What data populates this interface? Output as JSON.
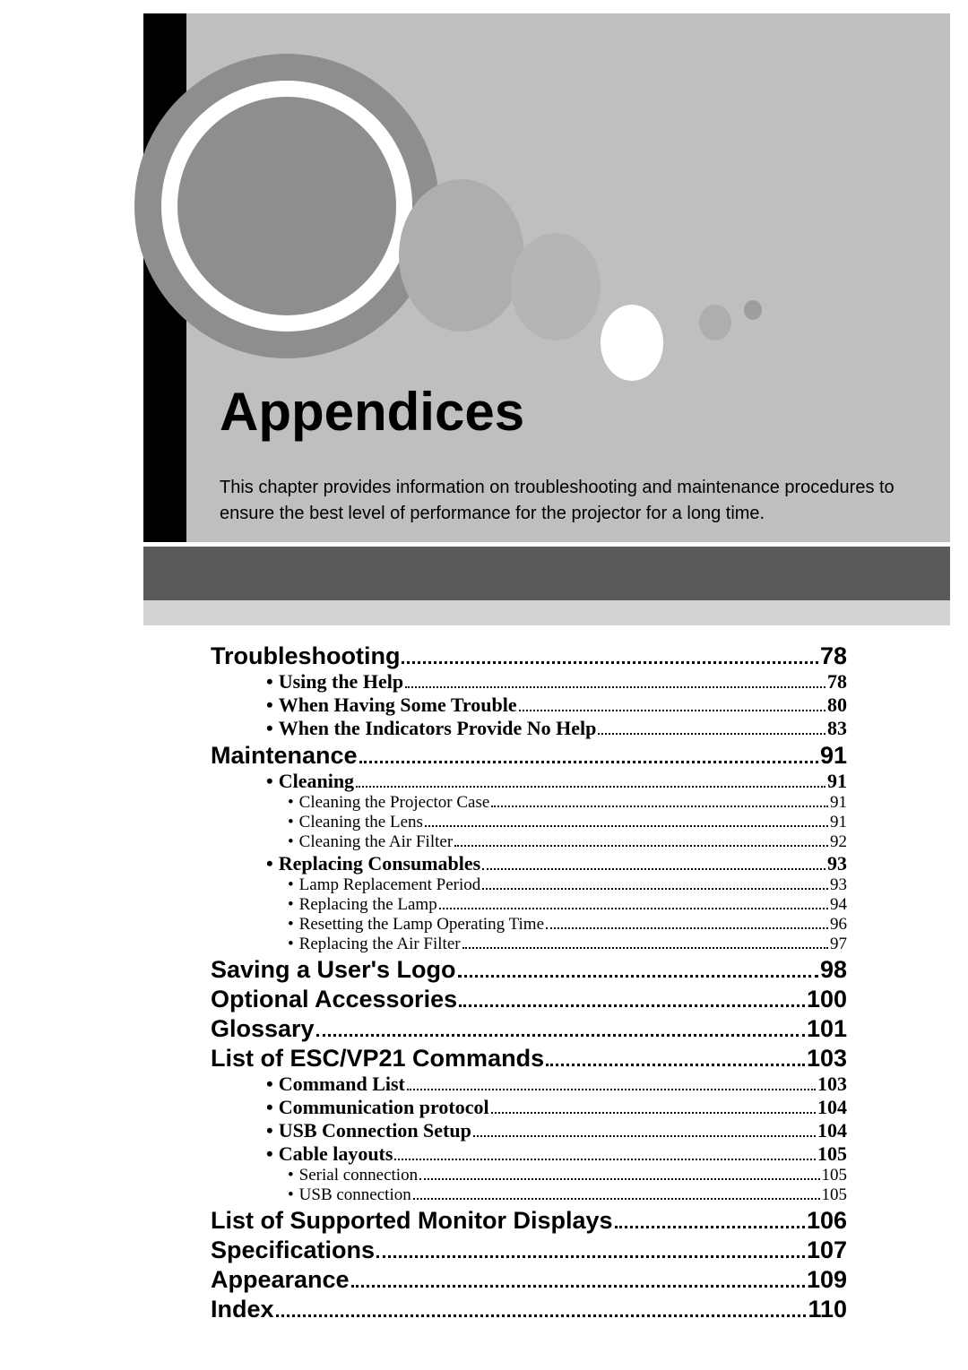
{
  "hero": {
    "title": "Appendices",
    "intro": "This chapter provides information on troubleshooting and maintenance procedures to ensure the best level of performance for the projector for a long time."
  },
  "toc": [
    {
      "level": 1,
      "label": "Troubleshooting",
      "page": "78"
    },
    {
      "level": 2,
      "label": "Using the Help",
      "page": "78"
    },
    {
      "level": 2,
      "label": "When Having Some Trouble",
      "page": "80"
    },
    {
      "level": 2,
      "label": "When the Indicators Provide No Help",
      "page": "83"
    },
    {
      "level": 1,
      "label": "Maintenance",
      "page": "91"
    },
    {
      "level": 2,
      "label": "Cleaning",
      "page": "91"
    },
    {
      "level": 3,
      "label": "Cleaning the Projector Case",
      "page": "91"
    },
    {
      "level": 3,
      "label": "Cleaning the Lens",
      "page": "91"
    },
    {
      "level": 3,
      "label": "Cleaning the Air Filter",
      "page": "92"
    },
    {
      "level": 2,
      "label": "Replacing Consumables",
      "page": "93"
    },
    {
      "level": 3,
      "label": "Lamp Replacement Period",
      "page": "93"
    },
    {
      "level": 3,
      "label": "Replacing the Lamp",
      "page": "94"
    },
    {
      "level": 3,
      "label": "Resetting the Lamp Operating Time",
      "page": "96"
    },
    {
      "level": 3,
      "label": "Replacing the Air Filter",
      "page": "97"
    },
    {
      "level": 1,
      "label": "Saving a User's Logo",
      "page": "98"
    },
    {
      "level": 1,
      "label": "Optional Accessories",
      "page": "100"
    },
    {
      "level": 1,
      "label": "Glossary",
      "page": "101"
    },
    {
      "level": 1,
      "label": "List of ESC/VP21 Commands",
      "page": "103"
    },
    {
      "level": 2,
      "label": "Command List",
      "page": "103"
    },
    {
      "level": 2,
      "label": "Communication protocol",
      "page": "104"
    },
    {
      "level": 2,
      "label": "USB Connection Setup",
      "page": "104"
    },
    {
      "level": 2,
      "label": "Cable layouts",
      "page": "105"
    },
    {
      "level": 3,
      "label": "Serial connection",
      "page": "105"
    },
    {
      "level": 3,
      "label": "USB connection",
      "page": "105"
    },
    {
      "level": 1,
      "label": "List of Supported Monitor Displays",
      "page": "106"
    },
    {
      "level": 1,
      "label": "Specifications",
      "page": "107"
    },
    {
      "level": 1,
      "label": "Appearance",
      "page": "109"
    },
    {
      "level": 1,
      "label": "Index",
      "page": "110"
    }
  ]
}
